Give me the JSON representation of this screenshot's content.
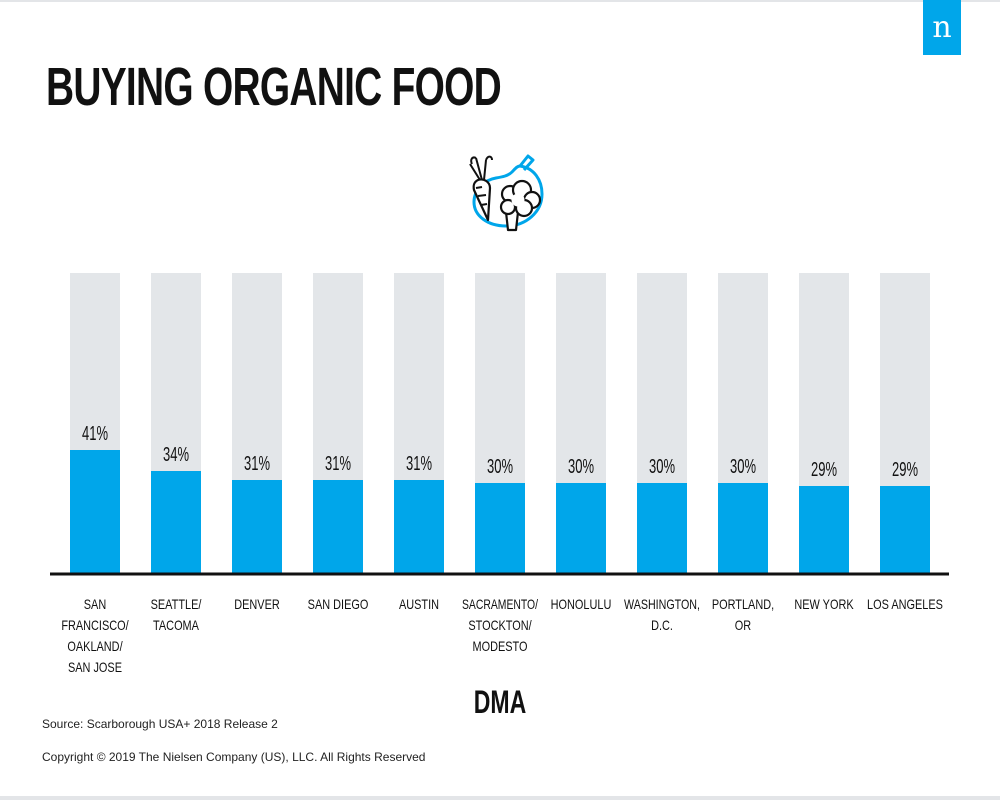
{
  "brand": {
    "logo_text": "n",
    "accent_color": "#00a6ea",
    "track_color": "#e3e6e9"
  },
  "title": "BUYING ORGANIC FOOD",
  "icon": "produce-icon",
  "chart_data": {
    "type": "bar",
    "categories": [
      "SAN FRANCISCO/ OAKLAND/ SAN JOSE",
      "SEATTLE/ TACOMA",
      "DENVER",
      "SAN DIEGO",
      "AUSTIN",
      "SACRAMENTO/ STOCKTON/ MODESTO",
      "HONOLULU",
      "WASHINGTON, D.C.",
      "PORTLAND, OR",
      "NEW YORK",
      "LOS ANGELES"
    ],
    "category_lines": [
      [
        "SAN",
        "FRANCISCO/",
        "OAKLAND/",
        "SAN JOSE"
      ],
      [
        "SEATTLE/",
        "TACOMA"
      ],
      [
        "DENVER"
      ],
      [
        "SAN DIEGO"
      ],
      [
        "AUSTIN"
      ],
      [
        "SACRAMENTO/",
        "STOCKTON/",
        "MODESTO"
      ],
      [
        "HONOLULU"
      ],
      [
        "WASHINGTON,",
        "D.C."
      ],
      [
        "PORTLAND,",
        "OR"
      ],
      [
        "NEW YORK"
      ],
      [
        "LOS ANGELES"
      ]
    ],
    "values": [
      41,
      34,
      31,
      31,
      31,
      30,
      30,
      30,
      30,
      29,
      29
    ],
    "value_labels": [
      "41%",
      "34%",
      "31%",
      "31%",
      "31%",
      "30%",
      "30%",
      "30%",
      "30%",
      "29%",
      "29%"
    ],
    "ylim": [
      0,
      100
    ],
    "xlabel": "DMA",
    "ylabel": "",
    "grid": false,
    "legend": "none"
  },
  "footer": {
    "source": "Source: Scarborough USA+ 2018 Release 2",
    "copyright": "Copyright © 2019 The Nielsen Company (US), LLC. All Rights Reserved"
  }
}
